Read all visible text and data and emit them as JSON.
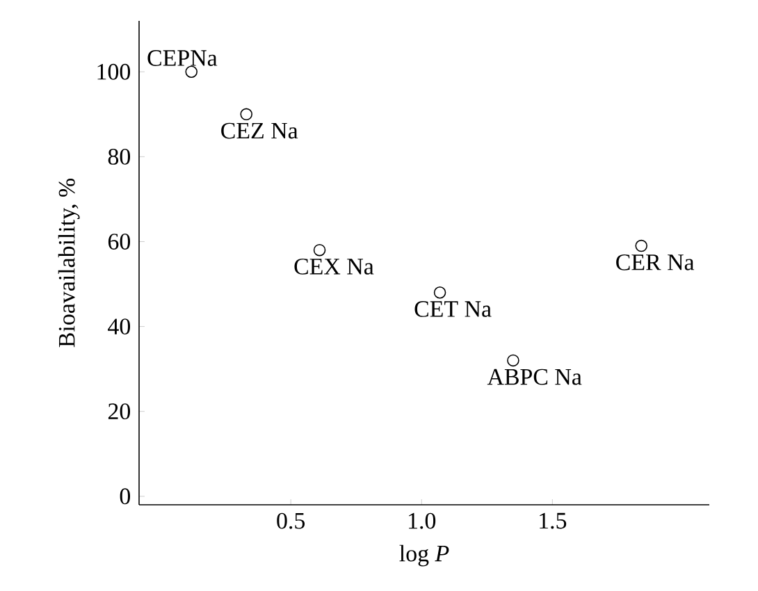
{
  "chart_data": {
    "type": "scatter",
    "xlabel": "log *P*",
    "ylabel": "Bioavailability, %",
    "x": [
      0.12,
      0.33,
      0.61,
      1.07,
      1.35,
      1.84
    ],
    "values": [
      100,
      90,
      58,
      48,
      32,
      59
    ],
    "color": "#000000",
    "marker": "circle",
    "grid": false,
    "legend": false,
    "xlim": [
      -0.08,
      2.1
    ],
    "ylim": [
      -2,
      112
    ],
    "xticks": [
      0.5,
      {
        "value": 1,
        "label": "1.0"
      },
      1.5
    ],
    "yticks": [
      0,
      20,
      40,
      60,
      80,
      100
    ],
    "annotations": [
      {
        "text": "CEPNa",
        "x": 0.12,
        "y": 100
      },
      {
        "text": "CEZ Na",
        "x": 0.33,
        "y": 90
      },
      {
        "text": "CEX Na",
        "x": 0.61,
        "y": 58
      },
      {
        "text": "CET Na",
        "x": 1.07,
        "y": 48
      },
      {
        "text": "ABPC Na",
        "x": 1.35,
        "y": 32
      },
      {
        "text": "CER Na",
        "x": 1.84,
        "y": 59
      }
    ]
  }
}
